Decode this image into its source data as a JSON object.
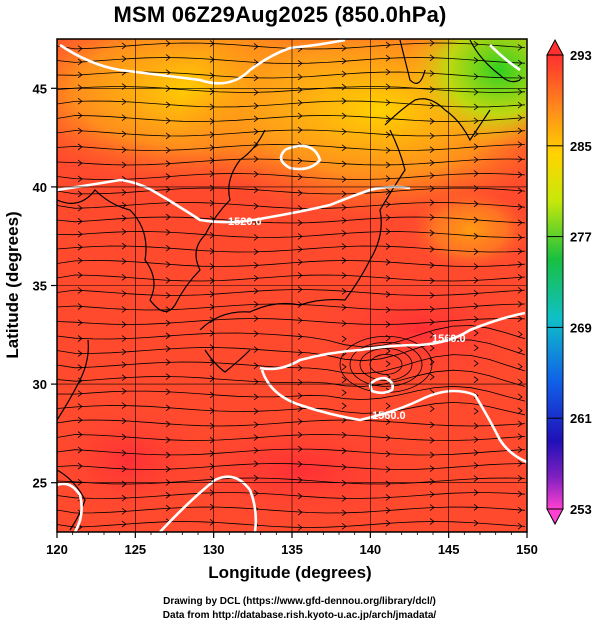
{
  "title": "MSM 06Z29Aug2025 (850.0hPa)",
  "credits": {
    "line1": "Drawing by DCL (https://www.gfd-dennou.org/library/dcl/)",
    "line2": "Data from http://database.rish.kyoto-u.ac.jp/arch/jmadata/"
  },
  "colorbar": {
    "min": 253,
    "max": 293,
    "tick_labels": [
      "293",
      "285",
      "277",
      "269",
      "261",
      "253"
    ]
  },
  "chart_data": {
    "type": "heatmap",
    "title": "MSM 06Z29Aug2025 (850.0hPa)",
    "xlabel": "Longitude (degrees)",
    "ylabel": "Latitude  (degrees)",
    "xlim": [
      120,
      150
    ],
    "ylim": [
      22.5,
      47.5
    ],
    "x_ticks": [
      "120",
      "125",
      "130",
      "135",
      "140",
      "145",
      "150"
    ],
    "y_ticks": [
      "25",
      "30",
      "35",
      "40",
      "45"
    ],
    "grid": true,
    "contour_labels": [
      "1520.0",
      "1560.0",
      "1560.0"
    ],
    "color_scale": {
      "min": 253,
      "max": 293,
      "ticks": [
        293,
        285,
        277,
        269,
        261,
        253
      ]
    }
  },
  "colors": {
    "hot": "#ff3030",
    "warm": "#ff8a1a",
    "cool": "#22d02a",
    "contour": "#ffffff",
    "streamline": "#000000"
  }
}
